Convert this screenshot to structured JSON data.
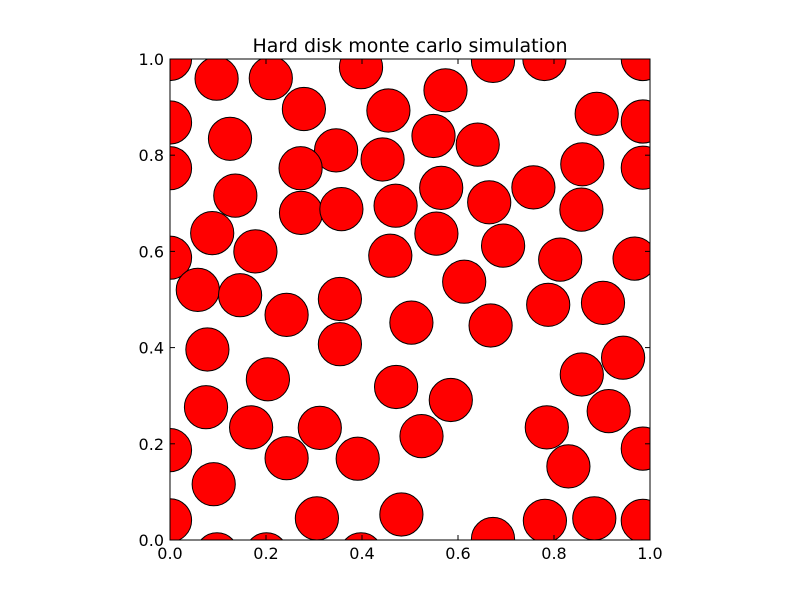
{
  "chart_data": {
    "type": "scatter",
    "title": "Hard disk monte carlo simulation",
    "xlabel": "",
    "ylabel": "",
    "xlim": [
      0.0,
      1.0
    ],
    "ylim": [
      0.0,
      1.0
    ],
    "grid": false,
    "disk_radius": 0.045,
    "disk_color": "#ff0000",
    "edge_color": "#000000",
    "x_ticks": [
      {
        "value": 0.0,
        "label": "0.0"
      },
      {
        "value": 0.2,
        "label": "0.2"
      },
      {
        "value": 0.4,
        "label": "0.4"
      },
      {
        "value": 0.6,
        "label": "0.6"
      },
      {
        "value": 0.8,
        "label": "0.8"
      },
      {
        "value": 1.0,
        "label": "1.0"
      }
    ],
    "y_ticks": [
      {
        "value": 0.0,
        "label": "0.0"
      },
      {
        "value": 0.2,
        "label": "0.2"
      },
      {
        "value": 0.4,
        "label": "0.4"
      },
      {
        "value": 0.6,
        "label": "0.6"
      },
      {
        "value": 0.8,
        "label": "0.8"
      },
      {
        "value": 1.0,
        "label": "1.0"
      }
    ],
    "disks": [
      [
        0.097,
        0.959
      ],
      [
        0.21,
        0.96
      ],
      [
        0.398,
        0.983
      ],
      [
        0.673,
        0.996
      ],
      [
        0.279,
        0.896
      ],
      [
        0.455,
        0.893
      ],
      [
        0.574,
        0.935
      ],
      [
        0.0,
        0.868
      ],
      [
        0.125,
        0.834
      ],
      [
        0.346,
        0.81
      ],
      [
        0.443,
        0.791
      ],
      [
        0.549,
        0.84
      ],
      [
        0.641,
        0.822
      ],
      [
        0.889,
        0.886
      ],
      [
        0.985,
        0.87
      ],
      [
        0.0,
        0.773
      ],
      [
        0.272,
        0.773
      ],
      [
        0.859,
        0.781
      ],
      [
        0.985,
        0.774
      ],
      [
        0.136,
        0.716
      ],
      [
        0.273,
        0.68
      ],
      [
        0.357,
        0.688
      ],
      [
        0.47,
        0.695
      ],
      [
        0.565,
        0.732
      ],
      [
        0.665,
        0.702
      ],
      [
        0.757,
        0.733
      ],
      [
        0.857,
        0.687
      ],
      [
        0.088,
        0.638
      ],
      [
        0.178,
        0.6
      ],
      [
        0.555,
        0.637
      ],
      [
        0.694,
        0.612
      ],
      [
        0.0,
        0.587
      ],
      [
        0.459,
        0.591
      ],
      [
        0.813,
        0.583
      ],
      [
        0.968,
        0.585
      ],
      [
        0.058,
        0.52
      ],
      [
        0.146,
        0.509
      ],
      [
        0.613,
        0.537
      ],
      [
        0.243,
        0.468
      ],
      [
        0.354,
        0.501
      ],
      [
        0.503,
        0.452
      ],
      [
        0.668,
        0.446
      ],
      [
        0.788,
        0.489
      ],
      [
        0.902,
        0.493
      ],
      [
        0.078,
        0.396
      ],
      [
        0.354,
        0.407
      ],
      [
        0.944,
        0.379
      ],
      [
        0.204,
        0.334
      ],
      [
        0.471,
        0.318
      ],
      [
        0.858,
        0.344
      ],
      [
        0.075,
        0.276
      ],
      [
        0.585,
        0.291
      ],
      [
        0.914,
        0.268
      ],
      [
        0.0,
        0.187
      ],
      [
        0.169,
        0.234
      ],
      [
        0.312,
        0.233
      ],
      [
        0.524,
        0.216
      ],
      [
        0.785,
        0.234
      ],
      [
        0.985,
        0.19
      ],
      [
        0.243,
        0.17
      ],
      [
        0.391,
        0.169
      ],
      [
        0.83,
        0.153
      ],
      [
        0.091,
        0.116
      ],
      [
        0.0,
        0.041
      ],
      [
        0.306,
        0.045
      ],
      [
        0.482,
        0.053
      ],
      [
        0.781,
        0.04
      ],
      [
        0.884,
        0.045
      ],
      [
        0.985,
        0.04
      ],
      [
        0.098,
        -0.03
      ],
      [
        0.201,
        -0.03
      ],
      [
        0.398,
        -0.03
      ],
      [
        0.673,
        0.002
      ],
      [
        0.0,
        1.0
      ],
      [
        0.78,
        1.0
      ],
      [
        0.985,
        1.0
      ]
    ]
  }
}
